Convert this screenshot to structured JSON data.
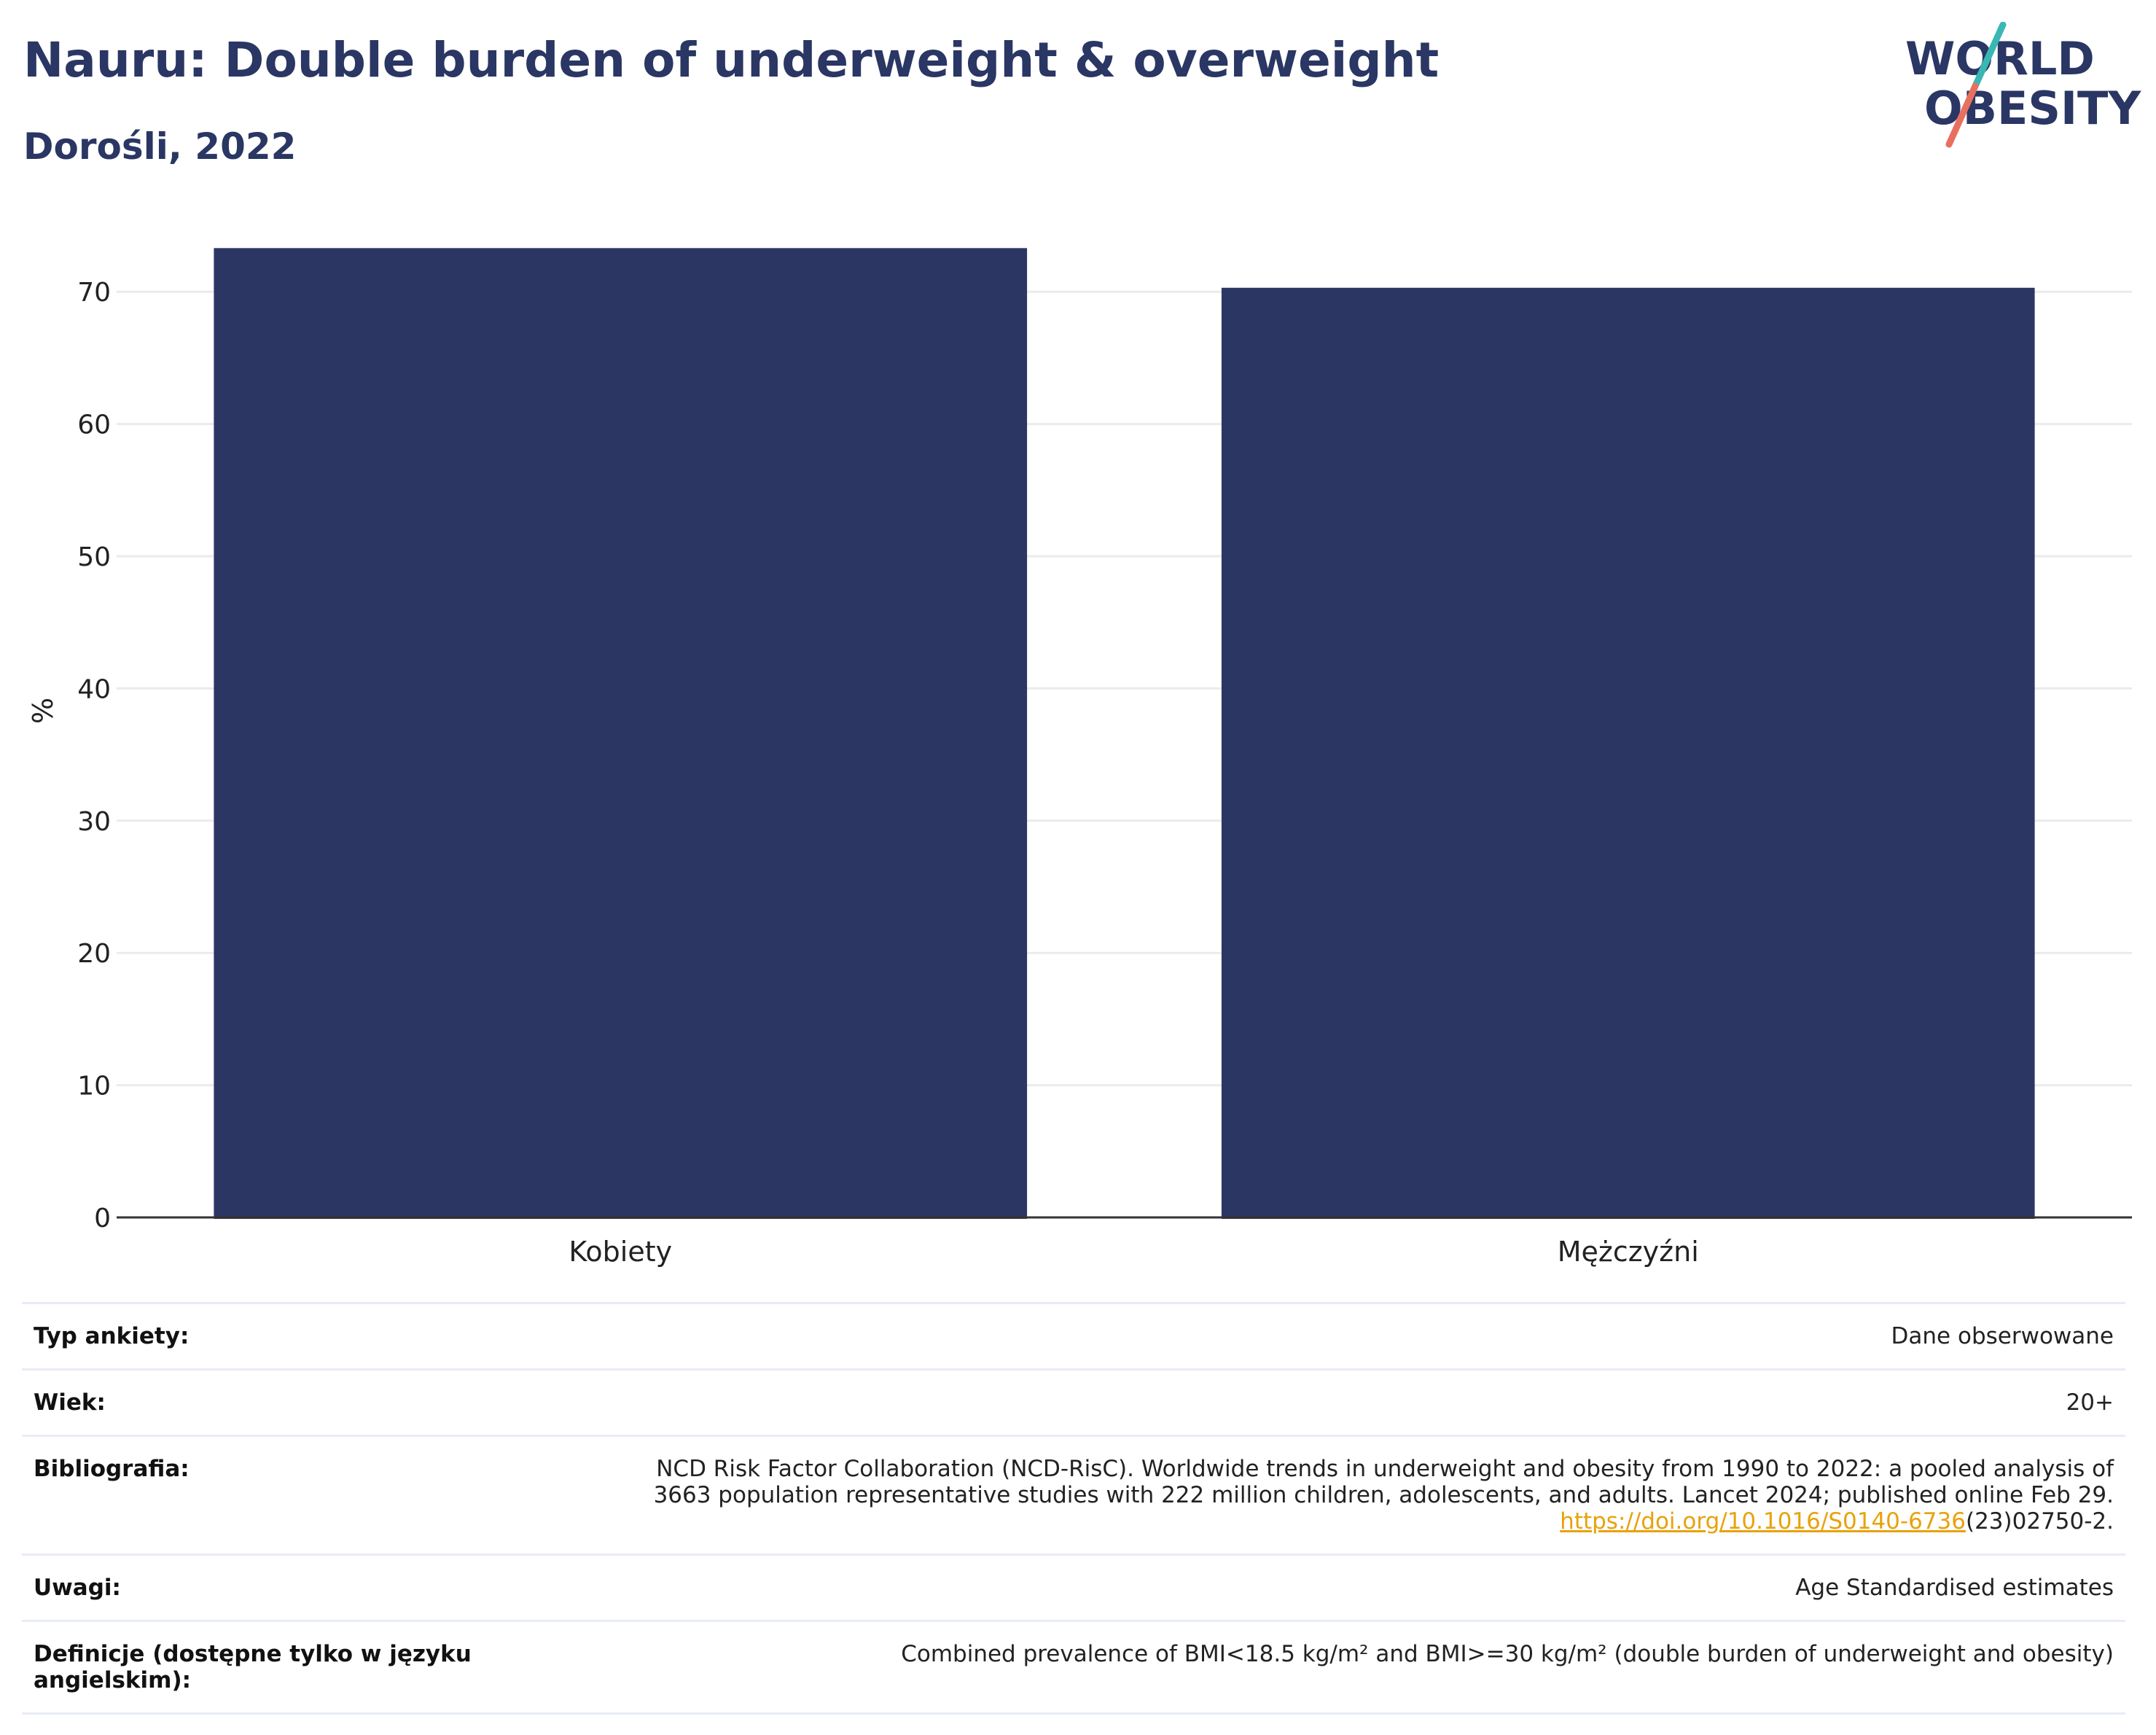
{
  "header": {
    "title": "Nauru: Double burden of underweight & overweight",
    "subtitle": "Dorośli, 2022"
  },
  "logo": {
    "line1": "WORLD",
    "line2": "OBESITY"
  },
  "chart_data": {
    "type": "bar",
    "categories": [
      "Kobiety",
      "Mężczyźni"
    ],
    "values": [
      73.3,
      70.3
    ],
    "ylabel": "%",
    "ylim": [
      0,
      75
    ],
    "yticks": [
      0,
      10,
      20,
      30,
      40,
      50,
      60,
      70
    ],
    "grid": true,
    "bar_color": "#2b3663"
  },
  "info": {
    "survey_type_label": "Typ ankiety:",
    "survey_type_value": "Dane obserwowane",
    "age_label": "Wiek:",
    "age_value": "20+",
    "bibliography_label": "Bibliografia:",
    "bibliography_line1": "NCD Risk Factor Collaboration (NCD-RisC). Worldwide trends in underweight and obesity from 1990 to 2022: a pooled analysis of",
    "bibliography_line2": "3663 population representative studies with 222 million children, adolescents, and adults. Lancet 2024; published online Feb 29.",
    "bibliography_link": "https://doi.org/10.1016/S0140-6736",
    "bibliography_suffix": "(23)02750-2.",
    "notes_label": "Uwagi:",
    "notes_value": "Age Standardised estimates",
    "definitions_label": "Definicje (dostępne tylko w języku angielskim):",
    "definitions_value": "Combined prevalence of BMI<18.5 kg/m² and BMI>=30 kg/m² (double burden of underweight and obesity)"
  }
}
